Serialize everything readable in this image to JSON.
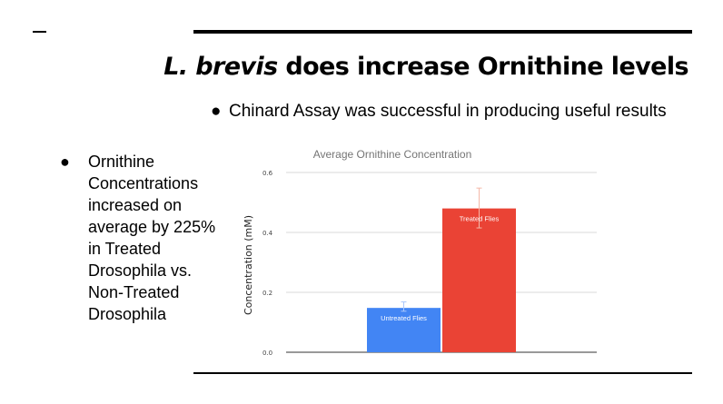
{
  "slide": {
    "title_italic": "L. brevis",
    "title_rest": " does increase Ornithine levels",
    "bullet_top": "Chinard Assay was successful in producing useful results",
    "bullet_left": "Ornithine Concentrations increased on average by 225% in Treated Drosophila vs. Non-Treated Drosophila",
    "bullet_symbol": "●"
  },
  "chart_data": {
    "type": "bar",
    "title": "Average Ornithine Concentration",
    "xlabel": "",
    "ylabel": "Concentration (mM)",
    "ylim": [
      0,
      0.6
    ],
    "yticks": [
      "0.0",
      "0.2",
      "0.4",
      "0.6"
    ],
    "categories": [
      "Untreated Flies",
      "Treated Flies"
    ],
    "values": [
      0.148,
      0.48
    ],
    "error_low": [
      0.137,
      0.415
    ],
    "error_high": [
      0.168,
      0.548
    ],
    "colors": [
      "#4285f4",
      "#ea4335"
    ],
    "data_labels": [
      "Untreated Flies",
      "Treated Flies"
    ],
    "grid": true,
    "legend": "none"
  }
}
